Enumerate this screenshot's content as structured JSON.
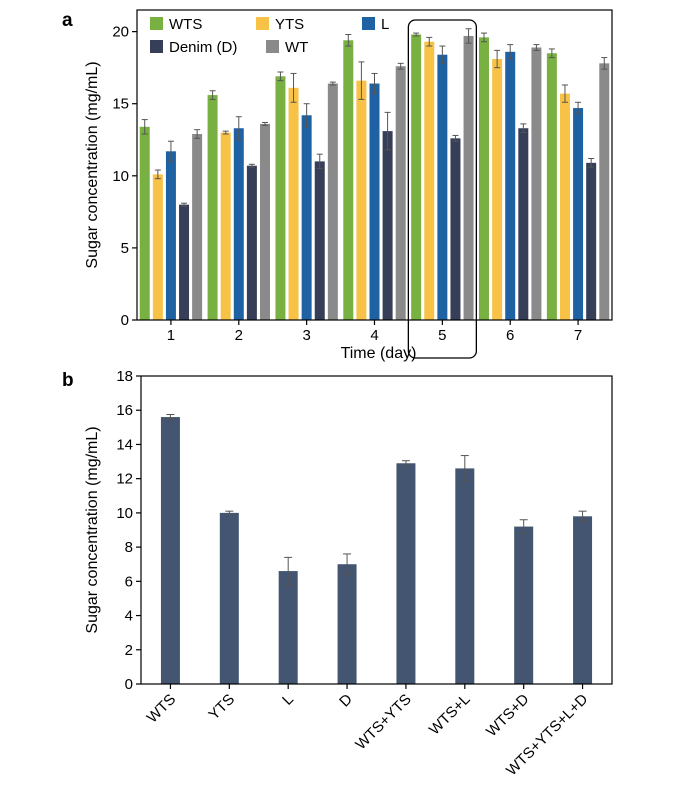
{
  "chart_data": [
    {
      "panel": "a",
      "type": "bar",
      "xlabel": "Time (day)",
      "ylabel": "Sugar concentration (mg/mL)",
      "ylim": [
        0,
        21.5
      ],
      "yticks": [
        0,
        5,
        10,
        15,
        20
      ],
      "categories": [
        "1",
        "2",
        "3",
        "4",
        "5",
        "6",
        "7"
      ],
      "highlight_category": "5",
      "legend_position": "top-left",
      "series": [
        {
          "name": "WTS",
          "color": "#78b041",
          "values": [
            13.4,
            15.6,
            16.9,
            19.4,
            19.8,
            19.6,
            18.5
          ],
          "errors": [
            0.5,
            0.3,
            0.3,
            0.4,
            0.1,
            0.3,
            0.3
          ]
        },
        {
          "name": "YTS",
          "color": "#f8c247",
          "values": [
            10.1,
            13.0,
            16.1,
            16.6,
            19.3,
            18.1,
            15.7
          ],
          "errors": [
            0.3,
            0.1,
            1.0,
            1.3,
            0.3,
            0.6,
            0.6
          ]
        },
        {
          "name": "L",
          "color": "#1f62a4",
          "values": [
            11.7,
            13.3,
            14.2,
            16.4,
            18.4,
            18.6,
            14.7
          ],
          "errors": [
            0.7,
            0.8,
            0.8,
            0.7,
            0.6,
            0.5,
            0.4
          ]
        },
        {
          "name": "Denim (D)",
          "color": "#363f57",
          "values": [
            8.0,
            10.7,
            11.0,
            13.1,
            12.6,
            13.3,
            10.9
          ],
          "errors": [
            0.1,
            0.1,
            0.5,
            1.3,
            0.2,
            0.3,
            0.3
          ]
        },
        {
          "name": "WT",
          "color": "#8a8a8a",
          "values": [
            12.9,
            13.6,
            16.4,
            17.6,
            19.7,
            18.9,
            17.8
          ],
          "errors": [
            0.3,
            0.1,
            0.1,
            0.2,
            0.5,
            0.2,
            0.4
          ]
        }
      ]
    },
    {
      "panel": "b",
      "type": "bar",
      "xlabel": "",
      "ylabel": "Sugar concentration (mg/mL)",
      "ylim": [
        0,
        18
      ],
      "yticks": [
        0,
        2,
        4,
        6,
        8,
        10,
        12,
        14,
        16,
        18
      ],
      "categories": [
        "WTS",
        "YTS",
        "L",
        "D",
        "WTS+YTS",
        "WTS+L",
        "WTS+D",
        "WTS+YTS+L+D"
      ],
      "series": [
        {
          "name": "Sugar concentration",
          "color": "#435570",
          "values": [
            15.6,
            10.0,
            6.6,
            7.0,
            12.9,
            12.6,
            9.2,
            9.8
          ],
          "errors": [
            0.15,
            0.1,
            0.8,
            0.6,
            0.15,
            0.75,
            0.4,
            0.3
          ]
        }
      ]
    }
  ]
}
